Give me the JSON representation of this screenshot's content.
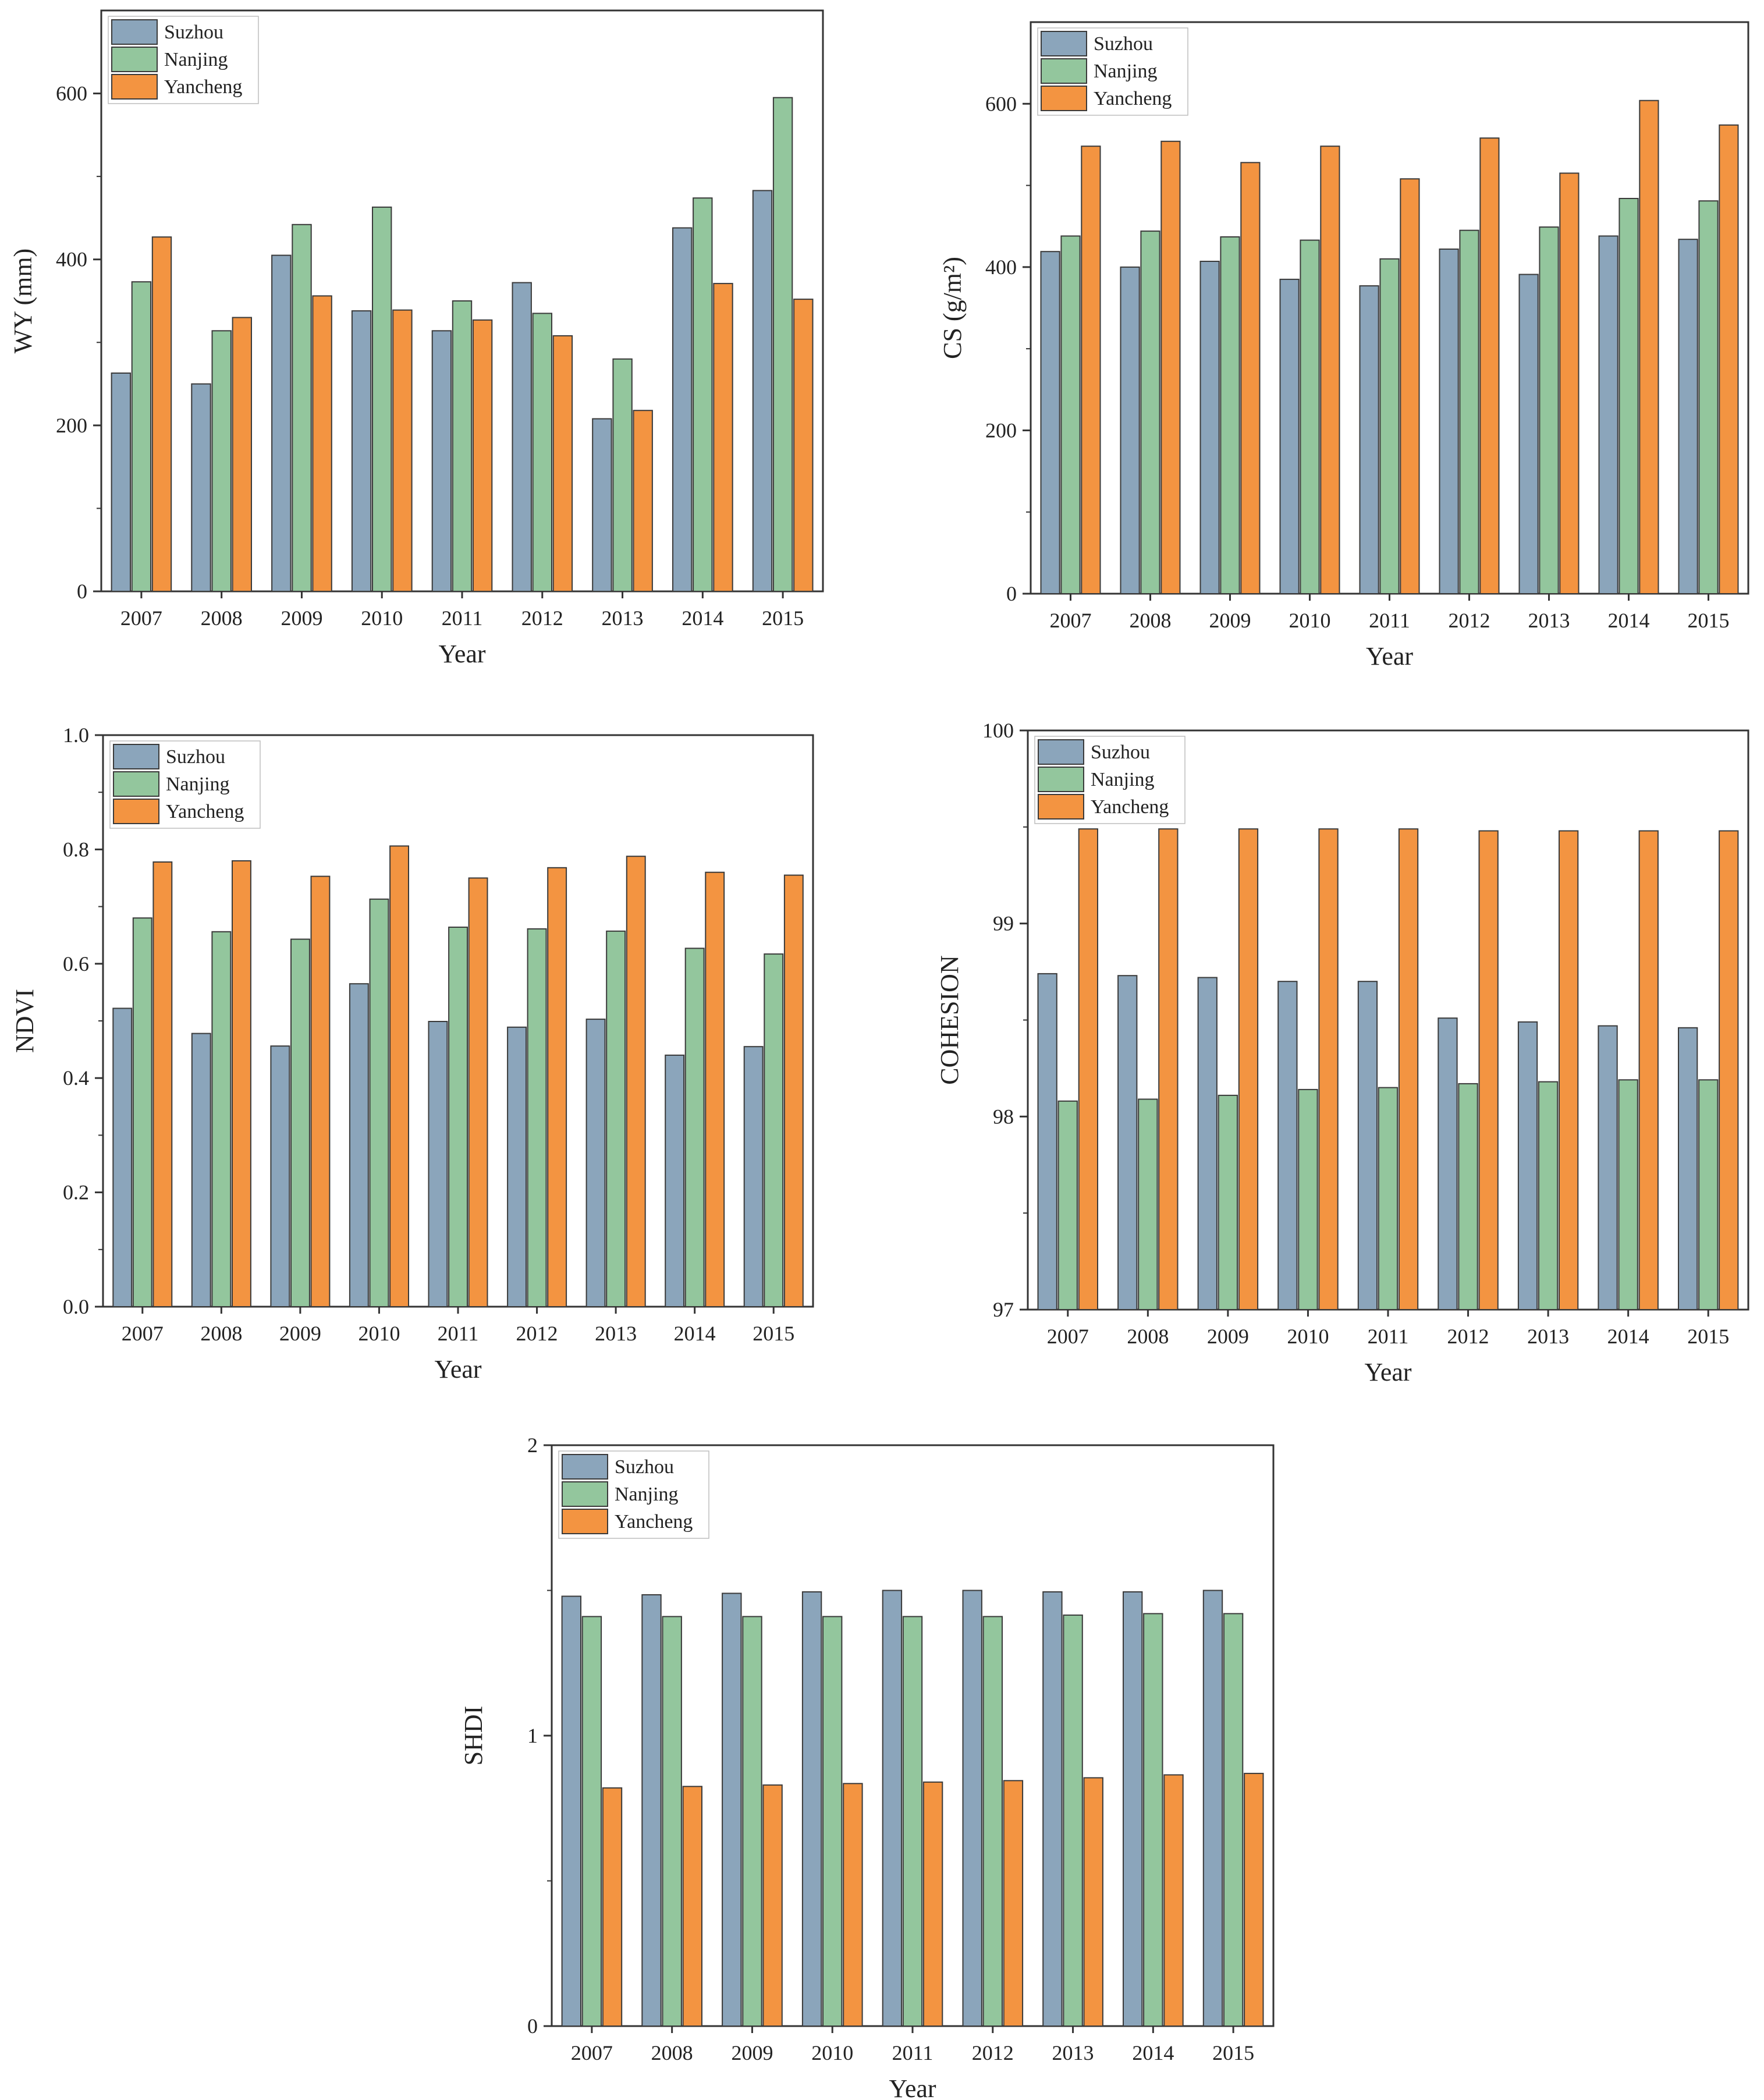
{
  "colors": {
    "Suzhou": "#8ba5bb",
    "Nanjing": "#93c69d",
    "Yancheng": "#f39441",
    "frame": "#333333"
  },
  "chart_data": [
    {
      "id": "wy",
      "type": "bar",
      "title": "",
      "xlabel": "Year",
      "ylabel": "WY (mm)",
      "ylim": [
        0,
        700
      ],
      "yticks": [
        0,
        200,
        400,
        600
      ],
      "ytick_labels": [
        "0",
        "200",
        "400",
        "600"
      ],
      "categories": [
        "2007",
        "2008",
        "2009",
        "2010",
        "2011",
        "2012",
        "2013",
        "2014",
        "2015"
      ],
      "legend": "top-left",
      "series": [
        {
          "name": "Suzhou",
          "values": [
            263,
            250,
            405,
            338,
            314,
            372,
            208,
            438,
            483
          ]
        },
        {
          "name": "Nanjing",
          "values": [
            373,
            314,
            442,
            463,
            350,
            335,
            280,
            474,
            595
          ]
        },
        {
          "name": "Yancheng",
          "values": [
            427,
            330,
            356,
            339,
            327,
            308,
            218,
            371,
            352
          ]
        }
      ]
    },
    {
      "id": "cs",
      "type": "bar",
      "title": "",
      "xlabel": "Year",
      "ylabel": "CS (g/m²)",
      "ylim": [
        0,
        700
      ],
      "yticks": [
        0,
        200,
        400,
        600
      ],
      "ytick_labels": [
        "0",
        "200",
        "400",
        "600"
      ],
      "categories": [
        "2007",
        "2008",
        "2009",
        "2010",
        "2011",
        "2012",
        "2013",
        "2014",
        "2015"
      ],
      "legend": "top-left",
      "series": [
        {
          "name": "Suzhou",
          "values": [
            419,
            400,
            407,
            385,
            377,
            422,
            391,
            438,
            434
          ]
        },
        {
          "name": "Nanjing",
          "values": [
            438,
            444,
            437,
            433,
            410,
            445,
            449,
            484,
            481
          ]
        },
        {
          "name": "Yancheng",
          "values": [
            548,
            554,
            528,
            548,
            508,
            558,
            515,
            604,
            574
          ]
        }
      ]
    },
    {
      "id": "ndvi",
      "type": "bar",
      "title": "",
      "xlabel": "Year",
      "ylabel": "NDVI",
      "ylim": [
        0,
        1.0
      ],
      "yticks": [
        0,
        0.2,
        0.4,
        0.6,
        0.8,
        1.0
      ],
      "ytick_labels": [
        "0.0",
        "0.2",
        "0.4",
        "0.6",
        "0.8",
        "1.0"
      ],
      "categories": [
        "2007",
        "2008",
        "2009",
        "2010",
        "2011",
        "2012",
        "2013",
        "2014",
        "2015"
      ],
      "legend": "top-left",
      "series": [
        {
          "name": "Suzhou",
          "values": [
            0.522,
            0.478,
            0.456,
            0.565,
            0.499,
            0.489,
            0.503,
            0.44,
            0.455
          ]
        },
        {
          "name": "Nanjing",
          "values": [
            0.68,
            0.656,
            0.643,
            0.713,
            0.664,
            0.661,
            0.657,
            0.627,
            0.617
          ]
        },
        {
          "name": "Yancheng",
          "values": [
            0.778,
            0.78,
            0.753,
            0.806,
            0.75,
            0.768,
            0.788,
            0.76,
            0.755
          ]
        }
      ]
    },
    {
      "id": "cohesion",
      "type": "bar",
      "title": "",
      "xlabel": "Year",
      "ylabel": "COHESION",
      "ylim": [
        97,
        100
      ],
      "yticks": [
        97,
        98,
        99,
        100
      ],
      "ytick_labels": [
        "97",
        "98",
        "99",
        "100"
      ],
      "categories": [
        "2007",
        "2008",
        "2009",
        "2010",
        "2011",
        "2012",
        "2013",
        "2014",
        "2015"
      ],
      "legend": "top-left",
      "series": [
        {
          "name": "Suzhou",
          "values": [
            98.74,
            98.73,
            98.72,
            98.7,
            98.7,
            98.51,
            98.49,
            98.47,
            98.46
          ]
        },
        {
          "name": "Nanjing",
          "values": [
            98.08,
            98.09,
            98.11,
            98.14,
            98.15,
            98.17,
            98.18,
            98.19,
            98.19
          ]
        },
        {
          "name": "Yancheng",
          "values": [
            99.49,
            99.49,
            99.49,
            99.49,
            99.49,
            99.48,
            99.48,
            99.48,
            99.48
          ]
        }
      ]
    },
    {
      "id": "shdi",
      "type": "bar",
      "title": "",
      "xlabel": "Year",
      "ylabel": "SHDI",
      "ylim": [
        0,
        2
      ],
      "yticks": [
        0,
        1,
        2
      ],
      "ytick_labels": [
        "0",
        "1",
        "2"
      ],
      "categories": [
        "2007",
        "2008",
        "2009",
        "2010",
        "2011",
        "2012",
        "2013",
        "2014",
        "2015"
      ],
      "legend": "top-left",
      "series": [
        {
          "name": "Suzhou",
          "values": [
            1.48,
            1.485,
            1.49,
            1.495,
            1.5,
            1.5,
            1.495,
            1.495,
            1.5
          ]
        },
        {
          "name": "Nanjing",
          "values": [
            1.41,
            1.41,
            1.41,
            1.41,
            1.41,
            1.41,
            1.415,
            1.42,
            1.42
          ]
        },
        {
          "name": "Yancheng",
          "values": [
            0.82,
            0.825,
            0.83,
            0.835,
            0.84,
            0.845,
            0.855,
            0.865,
            0.87
          ]
        }
      ]
    }
  ]
}
